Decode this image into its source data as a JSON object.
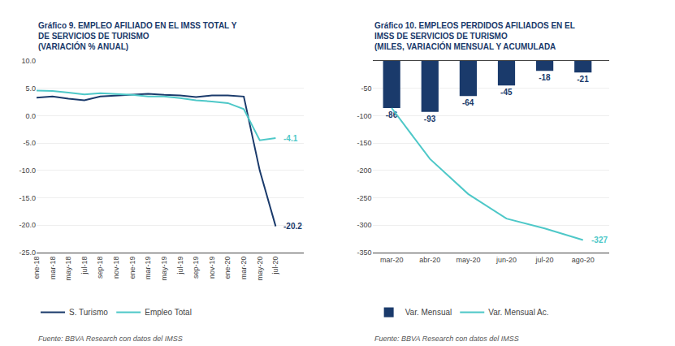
{
  "chart_data": [
    {
      "type": "line",
      "title": "Gráfico 9. EMPLEO AFILIADO EN EL IMSS TOTAL Y\nDE SERVICIOS DE TURISMO",
      "subtitle": "(VARIACIÓN % ANUAL)",
      "categories": [
        "ene-18",
        "mar-18",
        "may-18",
        "jul-18",
        "sep-18",
        "nov-18",
        "ene-19",
        "mar-19",
        "may-19",
        "jul-19",
        "sep-19",
        "nov-19",
        "ene-20",
        "mar-20",
        "may-20",
        "jul-20"
      ],
      "series": [
        {
          "name": "S. Turismo",
          "color": "#1a3a6b",
          "values": [
            3.3,
            3.5,
            3.1,
            2.8,
            3.5,
            3.7,
            3.8,
            4.0,
            3.8,
            3.7,
            3.4,
            3.7,
            3.7,
            3.5,
            -10.0,
            -20.2
          ]
        },
        {
          "name": "Empleo Total",
          "color": "#4ec8c8",
          "values": [
            4.6,
            4.5,
            4.2,
            3.9,
            4.1,
            4.0,
            3.8,
            3.5,
            3.5,
            3.2,
            2.8,
            2.6,
            2.3,
            1.2,
            -4.5,
            -4.1
          ]
        }
      ],
      "ylim": [
        -25.0,
        10.0
      ],
      "yticks": [
        {
          "value": 10.0,
          "label": "10.0"
        },
        {
          "value": 5.0,
          "label": "5.0"
        },
        {
          "value": 0.0,
          "label": "0.0"
        },
        {
          "value": -5.0,
          "label": "-5.0"
        },
        {
          "value": -10.0,
          "label": "-10.0"
        },
        {
          "value": -15.0,
          "label": "-15.0"
        },
        {
          "value": -20.0,
          "label": "-20.0"
        },
        {
          "value": -25.0,
          "label": "-25.0"
        }
      ],
      "grid": true,
      "legend": "lower left",
      "annotations": [
        {
          "text": "-20.2",
          "x": "jul-20",
          "y": -20.2,
          "color": "#1a3a6b"
        },
        {
          "text": "-4.1",
          "x": "jul-20",
          "y": -4.1,
          "color": "#4ec8c8"
        },
        {
          "text": "Fuente: BBVA Research con datos del IMSS"
        }
      ]
    },
    {
      "type": "bar",
      "title": "Gráfico 10. EMPLEOS PERDIDOS AFILIADOS EN EL\nIMSS DE SERVICIOS DE TURISMO",
      "subtitle": "(MILES, VARIACIÓN MENSUAL Y ACUMULADA",
      "categories": [
        "mar-20",
        "abr-20",
        "may-20",
        "jun-20",
        "jul-20",
        "ago-20"
      ],
      "series": [
        {
          "name": "Var. Mensual",
          "type": "bar",
          "color": "#1a3a6b",
          "values": [
            -86,
            -93,
            -64,
            -45,
            -18,
            -21
          ]
        },
        {
          "name": "Var. Mensual Ac.",
          "type": "line",
          "color": "#4ec8c8",
          "values": [
            -86,
            -179,
            -243,
            -288,
            -306,
            -327
          ]
        }
      ],
      "data_labels": true,
      "ylim": [
        -350,
        0
      ],
      "yticks": [
        -50,
        -100,
        -150,
        -200,
        -250,
        -300,
        -350
      ],
      "grid": true,
      "legend": "lower left",
      "annotations": [
        {
          "text": "-327",
          "x": "ago-20",
          "y": -327,
          "color": "#4ec8c8"
        },
        {
          "text": "Fuente: BBVA Research con datos del IMSS"
        }
      ]
    }
  ]
}
